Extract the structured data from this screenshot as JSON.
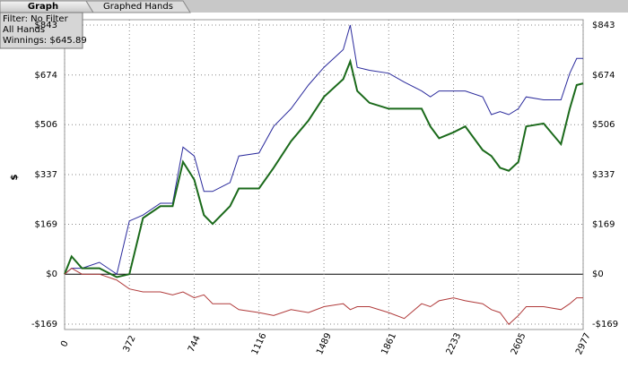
{
  "tabs": [
    "Graph",
    "Graphed Hands"
  ],
  "info": [
    "Filter: No Filter",
    "All Hands",
    "Winnings: $645.89"
  ],
  "chart_data": {
    "type": "line",
    "ylabel": "$",
    "x": [
      0,
      40,
      100,
      200,
      300,
      372,
      450,
      550,
      620,
      680,
      744,
      800,
      850,
      950,
      1000,
      1116,
      1200,
      1300,
      1400,
      1489,
      1600,
      1640,
      1680,
      1750,
      1861,
      1950,
      2050,
      2100,
      2150,
      2233,
      2300,
      2400,
      2450,
      2500,
      2550,
      2605,
      2650,
      2750,
      2850,
      2900,
      2940,
      2977
    ],
    "series": [
      {
        "color": "#2a2a9c",
        "values": [
          0,
          20,
          20,
          40,
          0,
          180,
          200,
          240,
          240,
          430,
          400,
          280,
          280,
          310,
          400,
          410,
          500,
          560,
          640,
          700,
          760,
          843,
          700,
          690,
          680,
          650,
          620,
          600,
          620,
          620,
          620,
          600,
          540,
          550,
          540,
          560,
          600,
          590,
          590,
          680,
          730,
          730
        ]
      },
      {
        "color": "#1b6a1b",
        "values": [
          0,
          60,
          20,
          20,
          -10,
          0,
          190,
          230,
          230,
          380,
          320,
          200,
          170,
          230,
          290,
          290,
          360,
          450,
          520,
          600,
          660,
          720,
          620,
          580,
          560,
          560,
          560,
          500,
          460,
          480,
          500,
          420,
          400,
          360,
          350,
          380,
          500,
          510,
          440,
          560,
          640,
          645.89
        ]
      },
      {
        "color": "#b03a3a",
        "values": [
          0,
          20,
          0,
          0,
          -20,
          -50,
          -60,
          -60,
          -70,
          -60,
          -80,
          -70,
          -100,
          -100,
          -120,
          -130,
          -140,
          -120,
          -130,
          -110,
          -100,
          -120,
          -110,
          -110,
          -130,
          -150,
          -100,
          -110,
          -90,
          -80,
          -90,
          -100,
          -120,
          -130,
          -170,
          -140,
          -110,
          -110,
          -120,
          -100,
          -80,
          -80
        ]
      }
    ],
    "xlim": [
      0,
      2977
    ],
    "xticks": [
      0,
      372,
      744,
      1116,
      1489,
      1861,
      2233,
      2605,
      2977
    ],
    "ylim": [
      -169,
      843
    ],
    "yticks": [
      {
        "value": 843,
        "label": "$843"
      },
      {
        "value": 674,
        "label": "$674"
      },
      {
        "value": 506,
        "label": "$506"
      },
      {
        "value": 337,
        "label": "$337"
      },
      {
        "value": 169,
        "label": "$169"
      },
      {
        "value": 0,
        "label": "$0"
      },
      {
        "value": -169,
        "label": "-$169"
      }
    ],
    "grid": true
  }
}
